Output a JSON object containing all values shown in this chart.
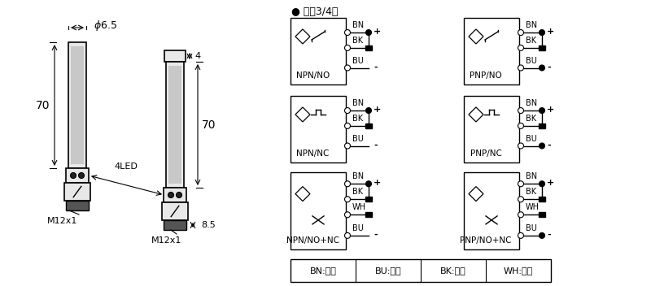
{
  "bg_color": "#ffffff",
  "line_color": "#000000",
  "gray_fill": "#d0d0d0",
  "light_gray": "#e8e8e8",
  "dim_color": "#333333",
  "title_dc": "● 直流3/4线",
  "legend_items": [
    "BN:棕色",
    "BU:兰色",
    "BK:黑色",
    "WH:白色"
  ],
  "circuit_labels_left": [
    "NPN/NO",
    "NPN/NC",
    "NPN/NO+NC"
  ],
  "circuit_labels_right": [
    "PNP/NO",
    "PNP/NC",
    "PNP/NO+NC"
  ],
  "wire_labels_3": [
    "BN",
    "BK",
    "BU"
  ],
  "wire_labels_4": [
    "BN",
    "BK",
    "WH",
    "BU"
  ]
}
